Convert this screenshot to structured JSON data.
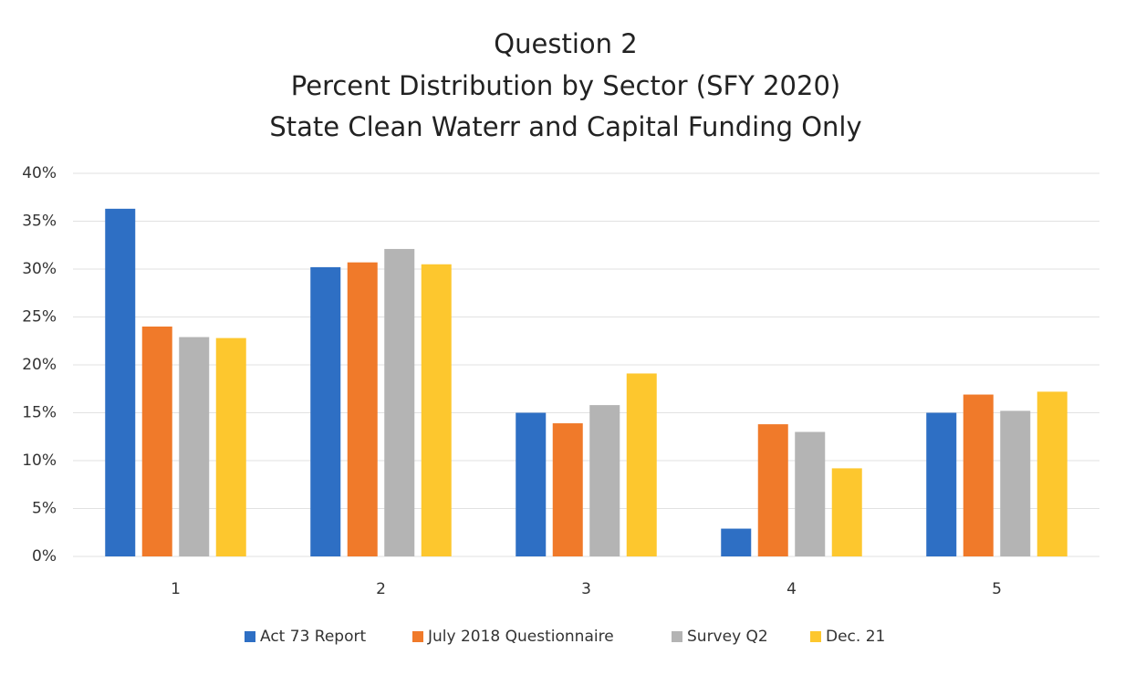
{
  "chart_data": {
    "type": "bar",
    "title": [
      "Question 2",
      "Percent Distribution by Sector (SFY 2020)",
      "State Clean Waterr and Capital Funding Only"
    ],
    "categories": [
      "1",
      "2",
      "3",
      "4",
      "5"
    ],
    "series": [
      {
        "name": "Act 73 Report",
        "color": "#2e6fc4",
        "values": [
          36.3,
          30.2,
          15,
          2.9,
          15
        ]
      },
      {
        "name": "July 2018 Questionnaire",
        "color": "#f07a2a",
        "values": [
          24,
          30.7,
          13.9,
          13.8,
          16.9
        ]
      },
      {
        "name": "Survey Q2",
        "color": "#b4b4b4",
        "values": [
          22.9,
          32.1,
          15.8,
          13,
          15.2
        ]
      },
      {
        "name": "Dec. 21",
        "color": "#fdc72e",
        "values": [
          22.8,
          30.5,
          19.1,
          9.2,
          17.2
        ]
      }
    ],
    "ylim": [
      0,
      40
    ],
    "yticks": [
      {
        "value": 0,
        "label": "0%"
      },
      {
        "value": 5,
        "label": "5%"
      },
      {
        "value": 10,
        "label": "10%"
      },
      {
        "value": 15,
        "label": "15%"
      },
      {
        "value": 20,
        "label": "20%"
      },
      {
        "value": 25,
        "label": "25%"
      },
      {
        "value": 30,
        "label": "30%"
      },
      {
        "value": 35,
        "label": "35%"
      },
      {
        "value": 40,
        "label": "40%"
      }
    ],
    "grid": true,
    "legend": "bottom"
  }
}
